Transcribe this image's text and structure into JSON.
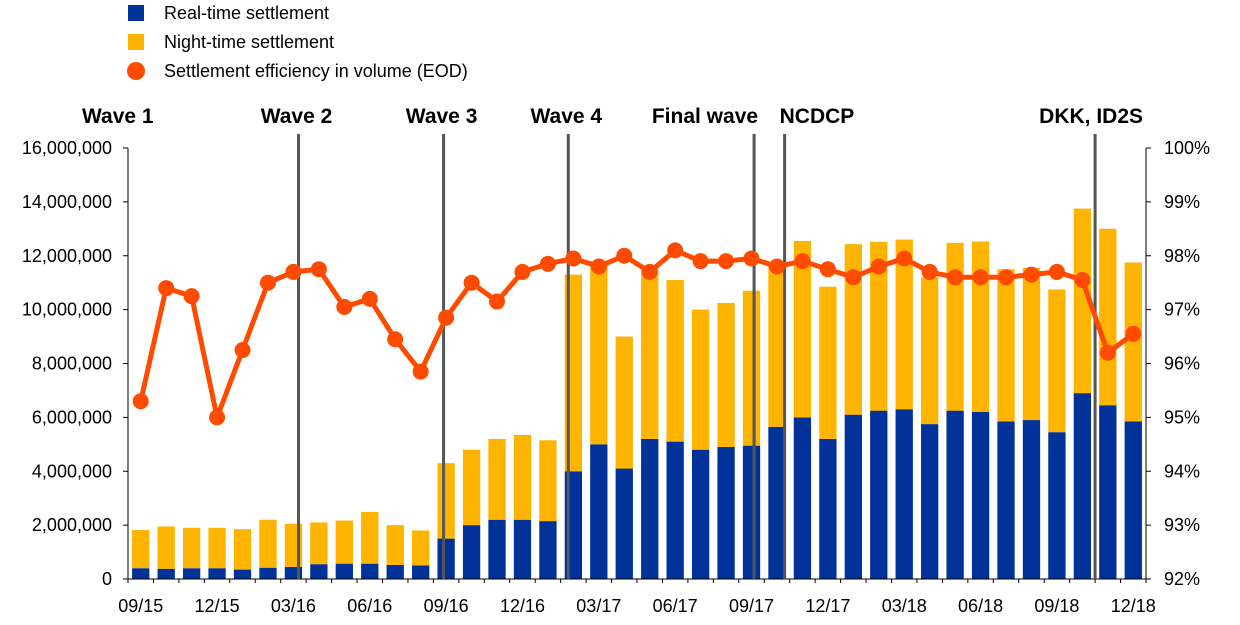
{
  "colors": {
    "realtime": "#003299",
    "nighttime": "#FFB400",
    "efficiency": "#FF4B00",
    "waveline": "#555555",
    "axis": "#000000"
  },
  "chart_data": {
    "type": "bar",
    "title": "",
    "legend": [
      {
        "name": "Real-time settlement",
        "kind": "square",
        "color_key": "realtime"
      },
      {
        "name": "Night-time settlement",
        "kind": "square",
        "color_key": "nighttime"
      },
      {
        "name": "Settlement efficiency in volume (EOD)",
        "kind": "dot",
        "color_key": "efficiency"
      }
    ],
    "categories": [
      "09/15",
      "10/15",
      "11/15",
      "12/15",
      "01/16",
      "02/16",
      "03/16",
      "04/16",
      "05/16",
      "06/16",
      "07/16",
      "08/16",
      "09/16",
      "10/16",
      "11/16",
      "12/16",
      "01/17",
      "02/17",
      "03/17",
      "04/17",
      "05/17",
      "06/17",
      "07/17",
      "08/17",
      "09/17",
      "10/17",
      "11/17",
      "12/17",
      "01/18",
      "02/18",
      "03/18",
      "04/18",
      "05/18",
      "06/18",
      "07/18",
      "08/18",
      "09/18",
      "10/18",
      "11/18",
      "12/18"
    ],
    "x_tick_labels": [
      "09/15",
      "12/15",
      "03/16",
      "06/16",
      "09/16",
      "12/16",
      "03/17",
      "06/17",
      "09/17",
      "12/17",
      "03/18",
      "06/18",
      "09/18",
      "12/18"
    ],
    "series": [
      {
        "name": "Real-time settlement",
        "axis": "left",
        "kind": "stacked-bar",
        "values": [
          400000,
          380000,
          400000,
          400000,
          350000,
          420000,
          450000,
          550000,
          570000,
          570000,
          520000,
          500000,
          1500000,
          2000000,
          2200000,
          2200000,
          2150000,
          4000000,
          5000000,
          4100000,
          5200000,
          5100000,
          4800000,
          4900000,
          4950000,
          5650000,
          6000000,
          5200000,
          6100000,
          6250000,
          6300000,
          5750000,
          6250000,
          6200000,
          5850000,
          5900000,
          5450000,
          6900000,
          6450000,
          5850000
        ]
      },
      {
        "name": "Night-time settlement",
        "axis": "left",
        "kind": "stacked-bar",
        "values": [
          1420000,
          1570000,
          1500000,
          1500000,
          1500000,
          1780000,
          1600000,
          1550000,
          1600000,
          1920000,
          1480000,
          1300000,
          2800000,
          2800000,
          3000000,
          3150000,
          3000000,
          7300000,
          6800000,
          4900000,
          6300000,
          6000000,
          5200000,
          5350000,
          5750000,
          6050000,
          6550000,
          5650000,
          6330000,
          6270000,
          6300000,
          5450000,
          6230000,
          6330000,
          5650000,
          5650000,
          5300000,
          6850000,
          6550000,
          5900000
        ]
      },
      {
        "name": "Settlement efficiency in volume (EOD)",
        "axis": "right",
        "kind": "line",
        "values": [
          95.3,
          97.4,
          97.25,
          95.0,
          96.25,
          97.5,
          97.7,
          97.75,
          97.05,
          97.2,
          96.45,
          95.85,
          96.85,
          97.5,
          97.15,
          97.7,
          97.85,
          97.95,
          97.8,
          98.0,
          97.7,
          98.1,
          97.9,
          97.9,
          97.95,
          97.8,
          97.9,
          97.75,
          97.6,
          97.8,
          97.95,
          97.7,
          97.6,
          97.6,
          97.6,
          97.65,
          97.7,
          97.55,
          96.2,
          96.55
        ]
      }
    ],
    "y_left": {
      "min": 0,
      "max": 16000000,
      "step": 2000000,
      "tick_labels": [
        "0",
        "2,000,000",
        "4,000,000",
        "6,000,000",
        "8,000,000",
        "10,000,000",
        "12,000,000",
        "14,000,000",
        "16,000,000"
      ]
    },
    "y_right": {
      "min": 92,
      "max": 100,
      "step": 1,
      "tick_labels": [
        "92%",
        "93%",
        "94%",
        "95%",
        "96%",
        "97%",
        "98%",
        "99%",
        "100%"
      ]
    },
    "events": [
      {
        "label": "Wave 1",
        "line_at": -0.5
      },
      {
        "label": "Wave 2",
        "line_at": 6.2
      },
      {
        "label": "Wave 3",
        "line_at": 11.9
      },
      {
        "label": "Wave 4",
        "line_at": 16.8
      },
      {
        "label": "Final wave",
        "line_at": 24.1
      },
      {
        "label": "NCDCP",
        "line_at": 25.3
      },
      {
        "label": "DKK, ID2S",
        "line_at": 37.5
      }
    ]
  }
}
